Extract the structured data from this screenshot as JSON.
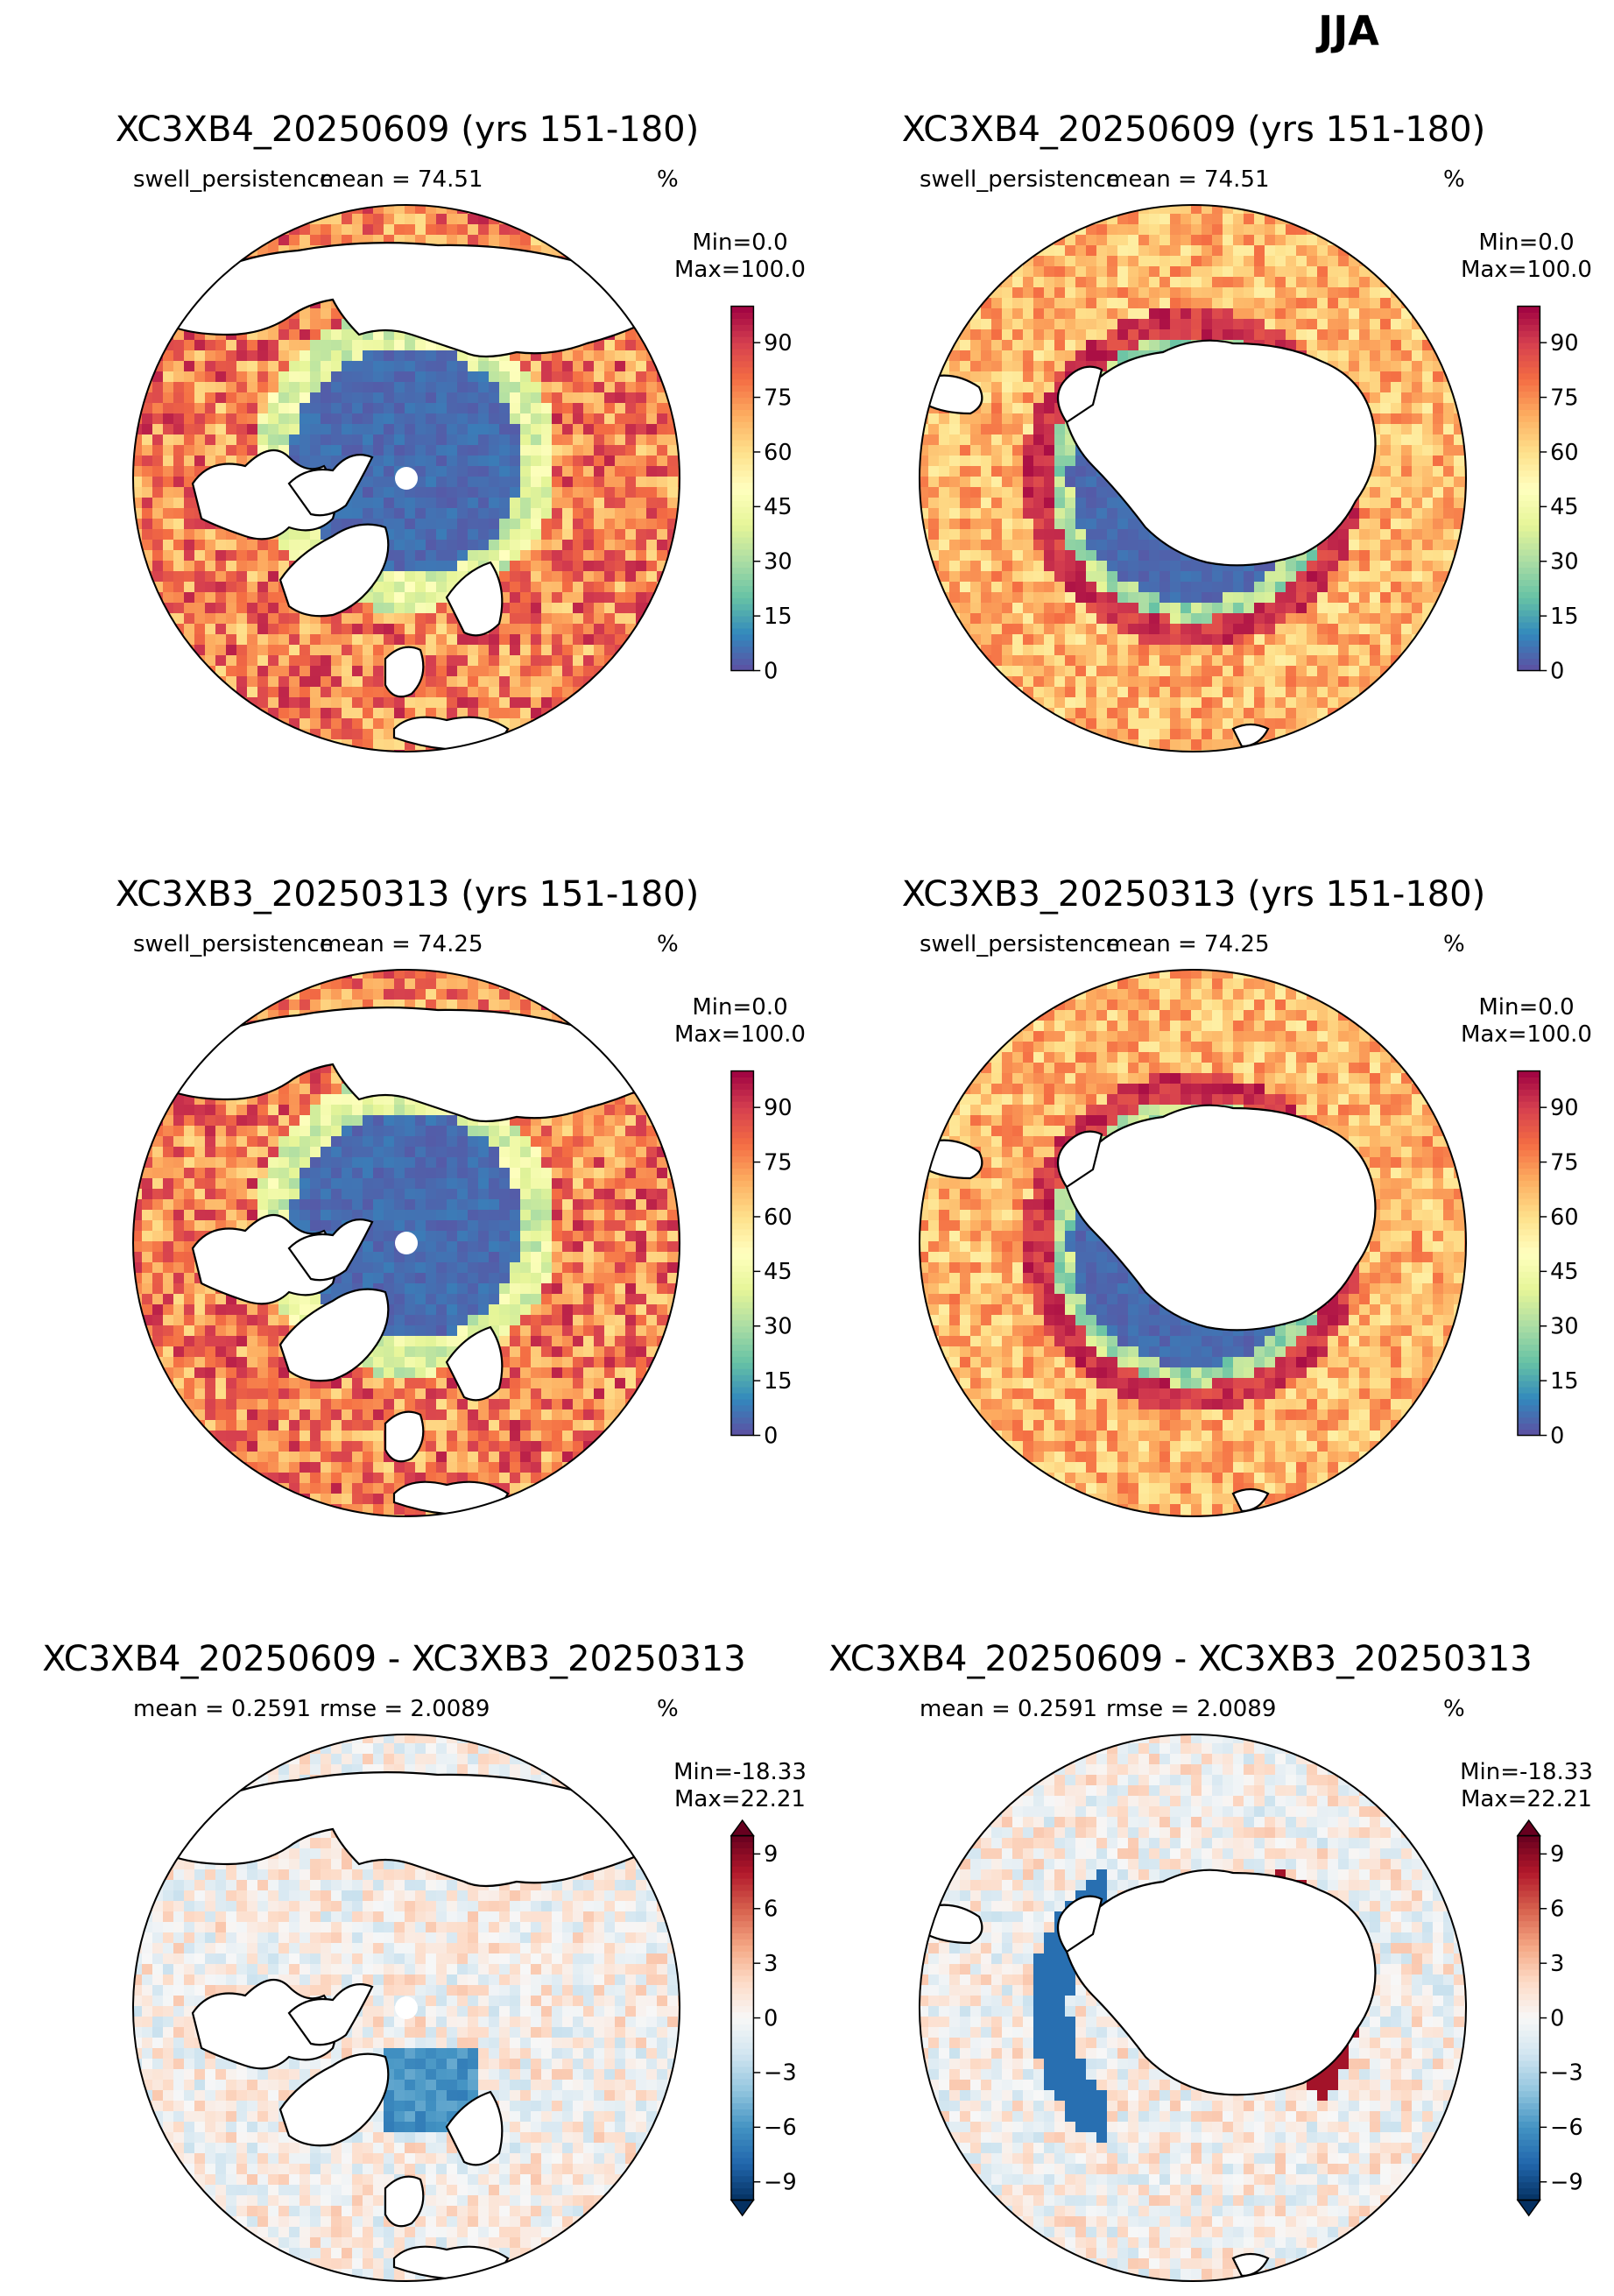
{
  "suptitle": "JJA",
  "colors": {
    "seq": [
      "#5e4fa2",
      "#3288bd",
      "#66c2a5",
      "#abdda4",
      "#e6f598",
      "#ffffbf",
      "#fee08b",
      "#fdae61",
      "#f46d43",
      "#d53e4f",
      "#9e0142"
    ],
    "div": [
      "#053061",
      "#2166ac",
      "#4393c3",
      "#92c5de",
      "#d1e5f0",
      "#f7f7f7",
      "#fddbc7",
      "#f4a582",
      "#d6604d",
      "#b2182b",
      "#67001f"
    ]
  },
  "panels": [
    {
      "title": "XC3XB4_20250609 (yrs 151-180)",
      "sub_left": "swell_persistence",
      "sub_mid": "mean = 74.51",
      "unit": "%",
      "minmax": "Min=0.0\nMax=100.0",
      "hemisphere": "north",
      "kind": "seq"
    },
    {
      "title": "XC3XB4_20250609 (yrs 151-180)",
      "sub_left": "swell_persistence",
      "sub_mid": "mean = 74.51",
      "unit": "%",
      "minmax": "Min=0.0\nMax=100.0",
      "hemisphere": "south",
      "kind": "seq"
    },
    {
      "title": "XC3XB3_20250313 (yrs 151-180)",
      "sub_left": "swell_persistence",
      "sub_mid": "mean = 74.25",
      "unit": "%",
      "minmax": "Min=0.0\nMax=100.0",
      "hemisphere": "north",
      "kind": "seq"
    },
    {
      "title": "XC3XB3_20250313 (yrs 151-180)",
      "sub_left": "swell_persistence",
      "sub_mid": "mean = 74.25",
      "unit": "%",
      "minmax": "Min=0.0\nMax=100.0",
      "hemisphere": "south",
      "kind": "seq"
    },
    {
      "title": "XC3XB4_20250609 - XC3XB3_20250313",
      "sub_left": "mean = 0.2591",
      "sub_mid": "rmse = 2.0089",
      "unit": "%",
      "minmax": "Min=-18.33\nMax=22.21",
      "hemisphere": "north",
      "kind": "div"
    },
    {
      "title": "XC3XB4_20250609 - XC3XB3_20250313",
      "sub_left": "mean = 0.2591",
      "sub_mid": "rmse = 2.0089",
      "unit": "%",
      "minmax": "Min=-18.33\nMax=22.21",
      "hemisphere": "south",
      "kind": "div"
    }
  ],
  "chart_data": [
    {
      "type": "heatmap",
      "projection": "north-polar-stereographic",
      "title": "XC3XB4_20250609 (yrs 151-180)",
      "variable": "swell_persistence",
      "mean": 74.51,
      "unit": "%",
      "min": 0.0,
      "max": 100.0,
      "colorbar": {
        "range": [
          0,
          100
        ],
        "ticks": [
          0,
          15,
          30,
          45,
          60,
          75,
          90
        ],
        "extend": "neither",
        "colormap": "Spectral_r"
      }
    },
    {
      "type": "heatmap",
      "projection": "south-polar-stereographic",
      "title": "XC3XB4_20250609 (yrs 151-180)",
      "variable": "swell_persistence",
      "mean": 74.51,
      "unit": "%",
      "min": 0.0,
      "max": 100.0,
      "colorbar": {
        "range": [
          0,
          100
        ],
        "ticks": [
          0,
          15,
          30,
          45,
          60,
          75,
          90
        ],
        "extend": "neither",
        "colormap": "Spectral_r"
      }
    },
    {
      "type": "heatmap",
      "projection": "north-polar-stereographic",
      "title": "XC3XB3_20250313 (yrs 151-180)",
      "variable": "swell_persistence",
      "mean": 74.25,
      "unit": "%",
      "min": 0.0,
      "max": 100.0,
      "colorbar": {
        "range": [
          0,
          100
        ],
        "ticks": [
          0,
          15,
          30,
          45,
          60,
          75,
          90
        ],
        "extend": "neither",
        "colormap": "Spectral_r"
      }
    },
    {
      "type": "heatmap",
      "projection": "south-polar-stereographic",
      "title": "XC3XB3_20250313 (yrs 151-180)",
      "variable": "swell_persistence",
      "mean": 74.25,
      "unit": "%",
      "min": 0.0,
      "max": 100.0,
      "colorbar": {
        "range": [
          0,
          100
        ],
        "ticks": [
          0,
          15,
          30,
          45,
          60,
          75,
          90
        ],
        "extend": "neither",
        "colormap": "Spectral_r"
      }
    },
    {
      "type": "heatmap",
      "projection": "north-polar-stereographic",
      "title": "XC3XB4_20250609 - XC3XB3_20250313",
      "mean": 0.2591,
      "rmse": 2.0089,
      "unit": "%",
      "min": -18.33,
      "max": 22.21,
      "colorbar": {
        "range": [
          -10,
          10
        ],
        "ticks": [
          -9,
          -6,
          -3,
          0,
          3,
          6,
          9
        ],
        "extend": "both",
        "colormap": "RdBu_r"
      }
    },
    {
      "type": "heatmap",
      "projection": "south-polar-stereographic",
      "title": "XC3XB4_20250609 - XC3XB3_20250313",
      "mean": 0.2591,
      "rmse": 2.0089,
      "unit": "%",
      "min": -18.33,
      "max": 22.21,
      "colorbar": {
        "range": [
          -10,
          10
        ],
        "ticks": [
          -9,
          -6,
          -3,
          0,
          3,
          6,
          9
        ],
        "extend": "both",
        "colormap": "RdBu_r"
      }
    }
  ]
}
